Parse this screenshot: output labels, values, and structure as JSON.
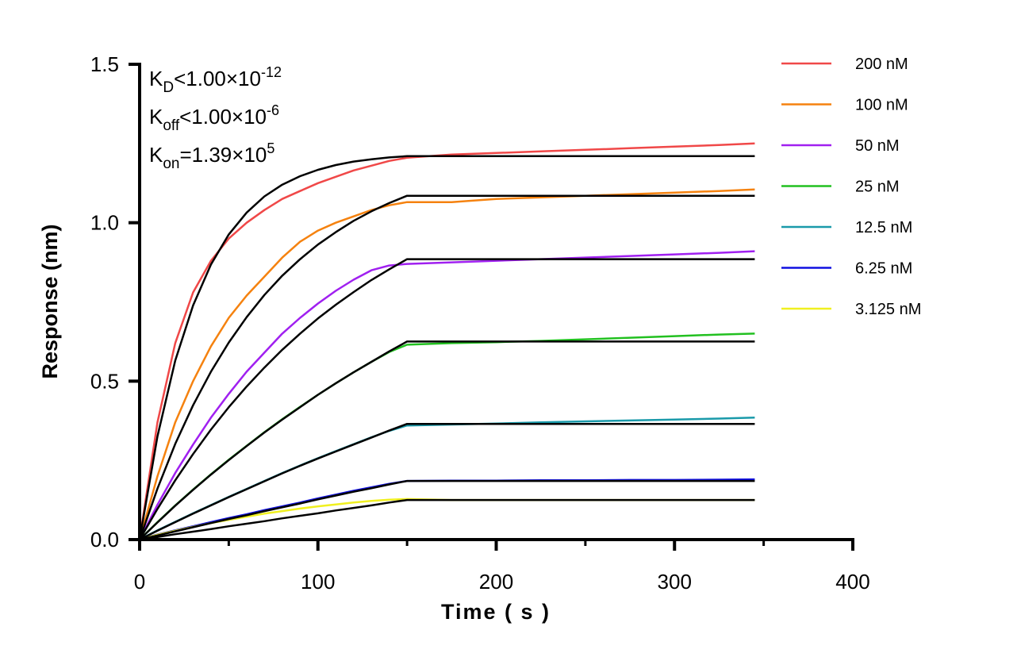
{
  "chart_data": {
    "type": "line",
    "xlabel": "Time ( s )",
    "ylabel": "Response (nm)",
    "xlim": [
      0,
      400
    ],
    "ylim": [
      0,
      1.5
    ],
    "xticks": [
      "0",
      "100",
      "200",
      "300",
      "400"
    ],
    "yticks": [
      "0.0",
      "0.5",
      "1.0",
      "1.5"
    ],
    "grid": false,
    "legend_position": "right",
    "annotations": [
      {
        "main": "K",
        "sub": "D",
        "rest": "<1.00×10",
        "sup": "-12"
      },
      {
        "main": "K",
        "sub": "off",
        "rest": "<1.00×10",
        "sup": "-6"
      },
      {
        "main": "K",
        "sub": "on",
        "rest": "=1.39×10",
        "sup": "5"
      }
    ],
    "x": [
      0,
      10,
      20,
      30,
      40,
      50,
      60,
      70,
      80,
      90,
      100,
      110,
      120,
      130,
      140,
      150,
      175,
      200,
      225,
      250,
      275,
      300,
      325,
      345
    ],
    "fit_color": "#000000",
    "series": [
      {
        "name": "200 nM",
        "color": "#f04848",
        "values": [
          0,
          0.37,
          0.62,
          0.78,
          0.88,
          0.95,
          1.0,
          1.04,
          1.075,
          1.1,
          1.125,
          1.145,
          1.165,
          1.18,
          1.195,
          1.205,
          1.215,
          1.22,
          1.225,
          1.23,
          1.235,
          1.24,
          1.245,
          1.25
        ],
        "fit": [
          0,
          0.326,
          0.565,
          0.739,
          0.868,
          0.963,
          1.032,
          1.083,
          1.12,
          1.147,
          1.167,
          1.182,
          1.193,
          1.2,
          1.206,
          1.21,
          1.21,
          1.21,
          1.21,
          1.21,
          1.21,
          1.21,
          1.21,
          1.21
        ]
      },
      {
        "name": "100 nM",
        "color": "#f5820f",
        "values": [
          0,
          0.2,
          0.37,
          0.5,
          0.61,
          0.7,
          0.77,
          0.83,
          0.89,
          0.94,
          0.975,
          1.0,
          1.02,
          1.04,
          1.055,
          1.065,
          1.065,
          1.075,
          1.08,
          1.085,
          1.09,
          1.095,
          1.1,
          1.105
        ],
        "fit": [
          0,
          0.161,
          0.302,
          0.424,
          0.53,
          0.622,
          0.702,
          0.772,
          0.833,
          0.885,
          0.931,
          0.97,
          1.006,
          1.036,
          1.062,
          1.085,
          1.085,
          1.085,
          1.085,
          1.085,
          1.085,
          1.085,
          1.085,
          1.085
        ]
      },
      {
        "name": "50 nM",
        "color": "#a020f0",
        "values": [
          0,
          0.11,
          0.21,
          0.3,
          0.385,
          0.46,
          0.53,
          0.59,
          0.65,
          0.7,
          0.745,
          0.785,
          0.82,
          0.85,
          0.865,
          0.87,
          0.875,
          0.88,
          0.885,
          0.89,
          0.895,
          0.9,
          0.905,
          0.91
        ],
        "fit": [
          0,
          0.097,
          0.187,
          0.27,
          0.347,
          0.418,
          0.483,
          0.543,
          0.599,
          0.65,
          0.698,
          0.741,
          0.781,
          0.819,
          0.853,
          0.885,
          0.885,
          0.885,
          0.885,
          0.885,
          0.885,
          0.885,
          0.885,
          0.885
        ]
      },
      {
        "name": "25 nM",
        "color": "#22c020",
        "values": [
          0,
          0.055,
          0.108,
          0.158,
          0.206,
          0.252,
          0.296,
          0.339,
          0.38,
          0.419,
          0.457,
          0.493,
          0.528,
          0.561,
          0.592,
          0.615,
          0.62,
          0.623,
          0.627,
          0.632,
          0.637,
          0.642,
          0.647,
          0.65
        ],
        "fit": [
          0,
          0.054,
          0.107,
          0.157,
          0.205,
          0.251,
          0.295,
          0.338,
          0.379,
          0.418,
          0.457,
          0.493,
          0.528,
          0.561,
          0.594,
          0.625,
          0.625,
          0.625,
          0.625,
          0.625,
          0.625,
          0.625,
          0.625,
          0.625
        ]
      },
      {
        "name": "12.5 nM",
        "color": "#1a9aaa",
        "values": [
          0,
          0.029,
          0.056,
          0.083,
          0.109,
          0.135,
          0.16,
          0.185,
          0.21,
          0.234,
          0.257,
          0.279,
          0.301,
          0.323,
          0.343,
          0.36,
          0.363,
          0.366,
          0.37,
          0.373,
          0.376,
          0.379,
          0.382,
          0.385
        ],
        "fit": [
          0,
          0.028,
          0.055,
          0.082,
          0.108,
          0.134,
          0.159,
          0.184,
          0.209,
          0.233,
          0.256,
          0.278,
          0.3,
          0.322,
          0.344,
          0.365,
          0.365,
          0.365,
          0.365,
          0.365,
          0.365,
          0.365,
          0.365,
          0.365
        ]
      },
      {
        "name": "6.25 nM",
        "color": "#1010e0",
        "values": [
          0,
          0.016,
          0.029,
          0.042,
          0.055,
          0.068,
          0.08,
          0.093,
          0.105,
          0.117,
          0.13,
          0.142,
          0.154,
          0.165,
          0.176,
          0.185,
          0.186,
          0.186,
          0.187,
          0.187,
          0.188,
          0.188,
          0.189,
          0.19
        ],
        "fit": [
          0,
          0.013,
          0.026,
          0.039,
          0.052,
          0.065,
          0.077,
          0.09,
          0.102,
          0.114,
          0.127,
          0.139,
          0.151,
          0.162,
          0.174,
          0.185,
          0.185,
          0.185,
          0.185,
          0.185,
          0.185,
          0.185,
          0.185,
          0.185
        ]
      },
      {
        "name": "3.125 nM",
        "color": "#f0f020",
        "values": [
          0,
          0.015,
          0.028,
          0.04,
          0.052,
          0.062,
          0.072,
          0.082,
          0.09,
          0.098,
          0.105,
          0.111,
          0.117,
          0.122,
          0.126,
          0.128,
          0.125,
          0.125,
          0.125,
          0.125,
          0.125,
          0.125,
          0.125,
          0.125
        ],
        "fit": [
          0,
          0.008,
          0.017,
          0.025,
          0.033,
          0.042,
          0.05,
          0.058,
          0.067,
          0.075,
          0.083,
          0.092,
          0.1,
          0.108,
          0.117,
          0.125,
          0.125,
          0.125,
          0.125,
          0.125,
          0.125,
          0.125,
          0.125,
          0.125
        ]
      }
    ]
  }
}
